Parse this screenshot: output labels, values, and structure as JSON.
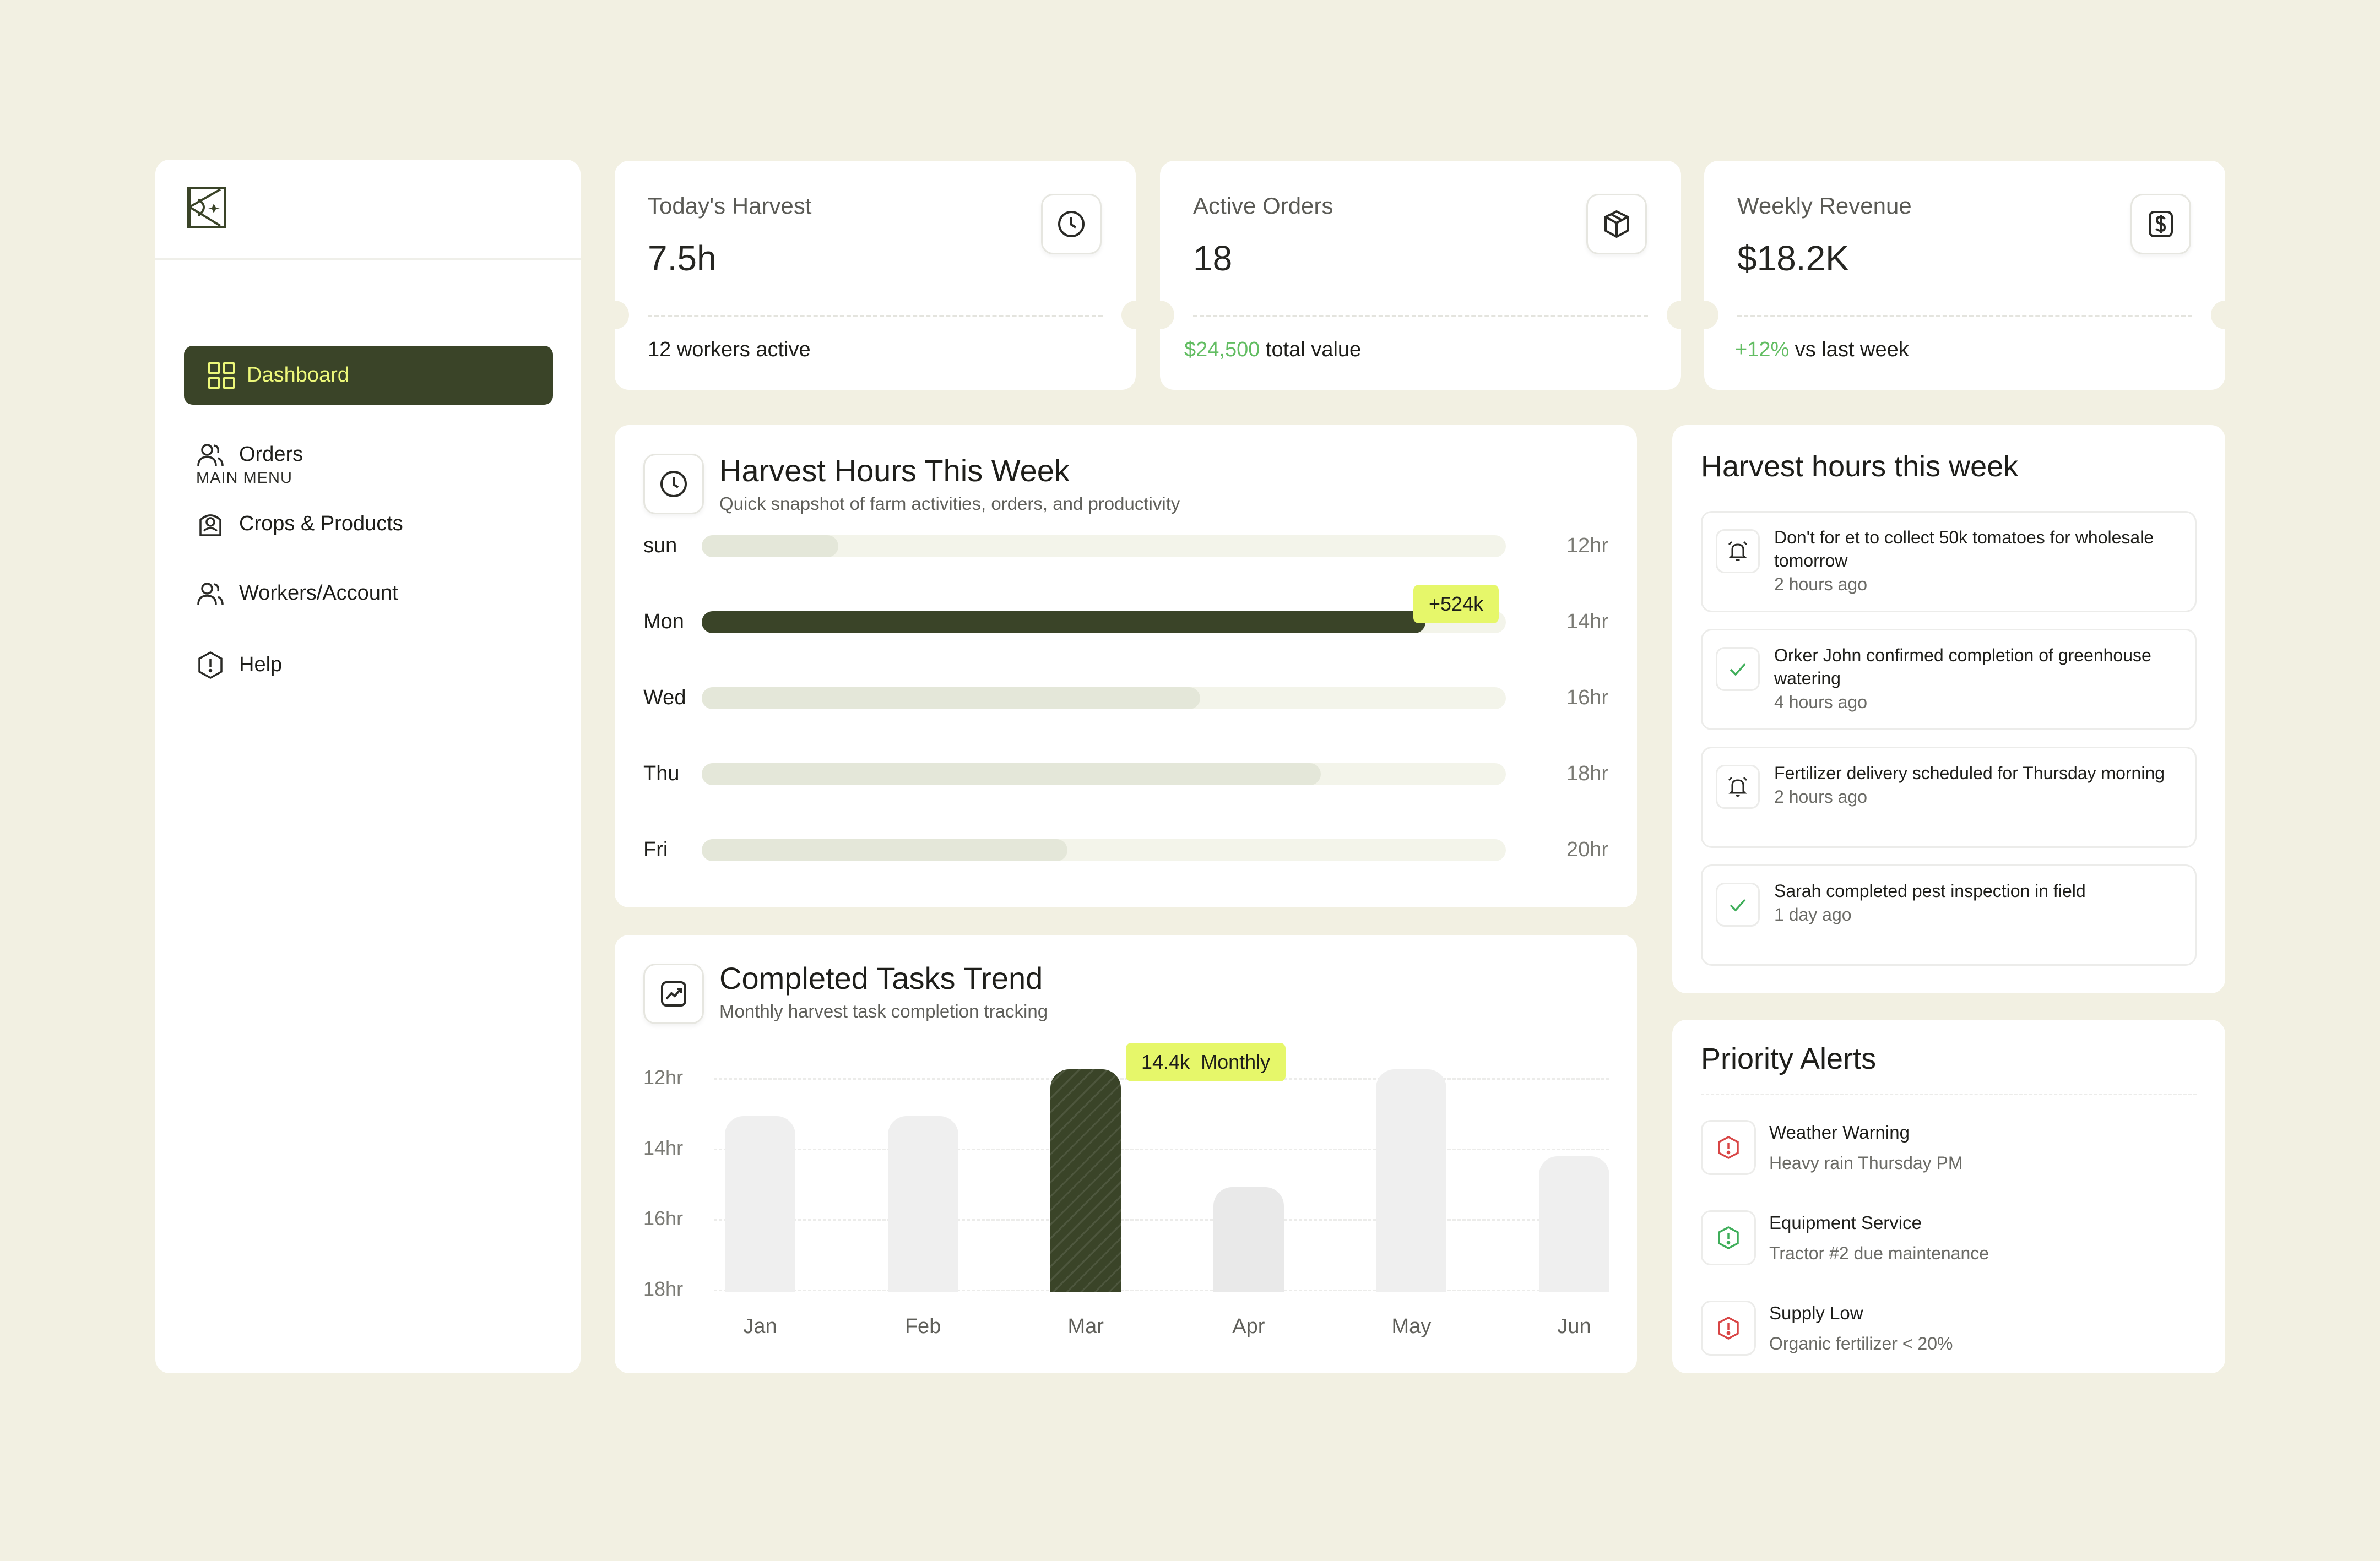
{
  "sidebar": {
    "logo": "farm-logo",
    "menu_title": "MAIN MENU",
    "items": [
      {
        "label": "Dashboard",
        "icon": "grid-icon",
        "active": true
      },
      {
        "label": "Orders",
        "icon": "users-icon"
      },
      {
        "label": "Crops & Products",
        "icon": "crop-icon"
      },
      {
        "label": "Workers/Account",
        "icon": "users-icon"
      },
      {
        "label": "Help",
        "icon": "alert-hexagon-icon"
      }
    ]
  },
  "stats": [
    {
      "title": "Today's Harvest",
      "value": "7.5h",
      "icon": "clock-icon",
      "foot_highlight": "",
      "foot_text": "12 workers active"
    },
    {
      "title": "Active Orders",
      "value": "18",
      "icon": "box-icon",
      "foot_highlight": "$24,500",
      "foot_text": " total value"
    },
    {
      "title": "Weekly Revenue",
      "value": "$18.2K",
      "icon": "dollar-icon",
      "foot_highlight": "+12%",
      "foot_text": " vs last week"
    }
  ],
  "harvest_hours": {
    "title": "Harvest Hours This Week",
    "subtitle": "Quick snapshot of farm activities, orders, and productivity",
    "icon": "clock-icon",
    "tooltip": "+524k",
    "rows": [
      {
        "day": "sun",
        "value": "12hr",
        "fill": 0.17
      },
      {
        "day": "Mon",
        "value": "14hr",
        "fill": 0.9,
        "highlight": true
      },
      {
        "day": "Wed",
        "value": "16hr",
        "fill": 0.62
      },
      {
        "day": "Thu",
        "value": "18hr",
        "fill": 0.77
      },
      {
        "day": "Fri",
        "value": "20hr",
        "fill": 0.455
      }
    ]
  },
  "chart_data": {
    "type": "bar",
    "title": "Completed Tasks Trend",
    "subtitle": "Monthly harvest task completion tracking",
    "categories": [
      "Jan",
      "Feb",
      "Mar",
      "Apr",
      "May",
      "Jun"
    ],
    "values": [
      0.79,
      0.79,
      1.0,
      0.47,
      1.0,
      0.61
    ],
    "highlight_index": 2,
    "y_ticks": [
      "12hr",
      "14hr",
      "16hr",
      "18hr"
    ],
    "tooltip": {
      "value": "14.4k",
      "label": "Monthly"
    },
    "grid": true
  },
  "trend": {
    "icon": "trend-up-icon"
  },
  "notifications": {
    "title": "Harvest hours this week",
    "items": [
      {
        "text": "Don't for et to collect 50k tomatoes for wholesale tomorrow",
        "time": "2 hours ago",
        "icon": "alarm-icon"
      },
      {
        "text": "Orker John confirmed completion of greenhouse watering",
        "time": "4 hours ago",
        "icon": "check-icon"
      },
      {
        "text": "Fertilizer delivery scheduled for Thursday morning",
        "time": "2 hours ago",
        "icon": "alarm-icon"
      },
      {
        "text": "Sarah completed pest inspection in field",
        "time": "1 day ago",
        "icon": "check-icon"
      }
    ]
  },
  "alerts": {
    "title": "Priority Alerts",
    "items": [
      {
        "title": "Weather Warning",
        "sub": "Heavy rain Thursday PM",
        "icon": "alert-hexagon-icon",
        "color": "#d84545"
      },
      {
        "title": "Equipment Service",
        "sub": "Tractor #2 due maintenance",
        "icon": "alert-hexagon-icon",
        "color": "#3fae5a"
      },
      {
        "title": "Supply Low",
        "sub": "Organic fertilizer < 20%",
        "icon": "alert-hexagon-icon",
        "color": "#d84545"
      }
    ]
  },
  "colors": {
    "background": "#f2f0e2",
    "accent_dark": "#3a4428",
    "accent_lime": "#e6f76a",
    "positive": "#62bd62"
  }
}
